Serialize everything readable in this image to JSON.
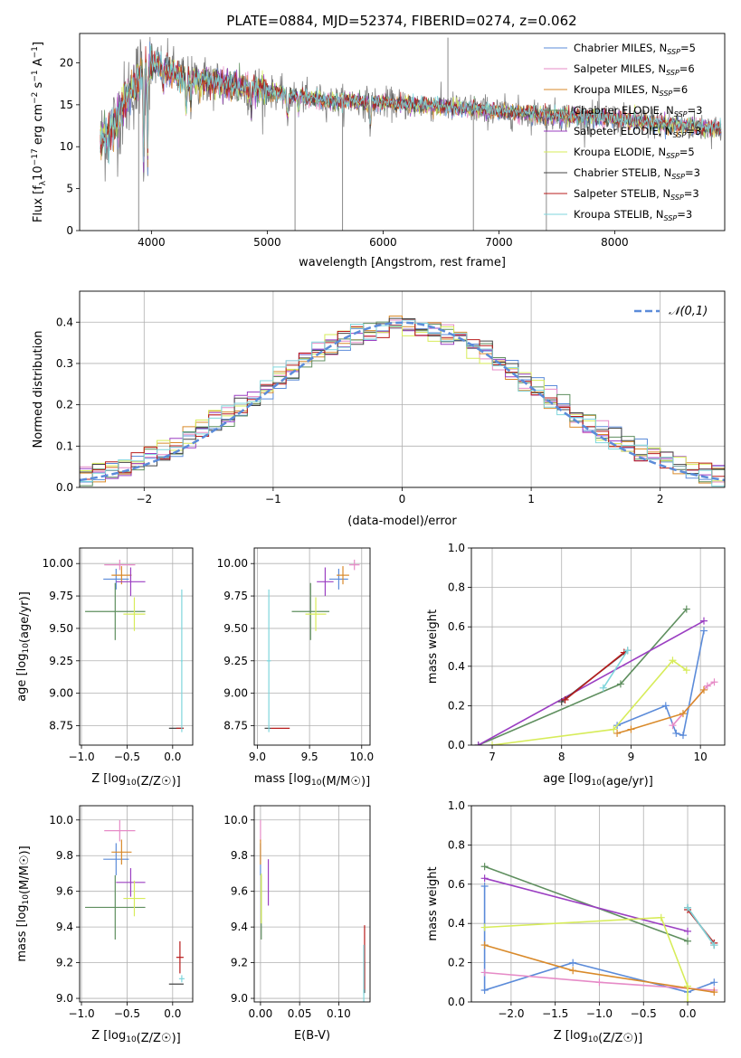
{
  "figure": {
    "title": "PLATE=0884, MJD=52374, FIBERID=0274, z=0.062"
  },
  "models": [
    {
      "name": "Chabrier MILES",
      "nssp": "5",
      "color": "#5b8bd9"
    },
    {
      "name": "Salpeter MILES",
      "nssp": "6",
      "color": "#e68bc7"
    },
    {
      "name": "Kroupa MILES",
      "nssp": "6",
      "color": "#d98a2a"
    },
    {
      "name": "Chabrier ELODIE",
      "nssp": "3",
      "color": "#5f8f5f"
    },
    {
      "name": "Salpeter ELODIE",
      "nssp": "3",
      "color": "#9b3fc2"
    },
    {
      "name": "Kroupa ELODIE",
      "nssp": "5",
      "color": "#d7ec5a"
    },
    {
      "name": "Chabrier STELIB",
      "nssp": "3",
      "color": "#444444"
    },
    {
      "name": "Salpeter STELIB",
      "nssp": "3",
      "color": "#b81c1c"
    },
    {
      "name": "Kroupa STELIB",
      "nssp": "3",
      "color": "#7fd6dc"
    }
  ],
  "chart_data": [
    {
      "id": "spectrum",
      "type": "line",
      "xlabel": "wavelength [Angstrom, rest frame]",
      "ylabel_parts": [
        "Flux [f",
        "λ",
        "10",
        "−17",
        " erg cm",
        "−2",
        " s",
        "−1",
        " A",
        "−1",
        "]"
      ],
      "xlim": [
        3380,
        8950
      ],
      "ylim": [
        0,
        23.5
      ],
      "xticks": [
        4000,
        5000,
        6000,
        7000,
        8000
      ],
      "yticks": [
        0,
        5,
        10,
        15,
        20
      ],
      "grid": false,
      "legend": "upper right",
      "continuum": {
        "x": [
          3560,
          3700,
          3800,
          3900,
          4000,
          4100,
          4300,
          4500,
          5000,
          5500,
          6000,
          6500,
          7000,
          7400,
          8000,
          8500,
          8920
        ],
        "y": [
          10.5,
          13,
          16,
          18.5,
          20,
          19.5,
          18,
          17.8,
          16.6,
          15.5,
          15.2,
          14.8,
          14.2,
          13.8,
          13.3,
          12.6,
          12.2
        ]
      },
      "spikes": [
        {
          "x": 3890,
          "y": 0
        },
        {
          "x": 5240,
          "y": 0
        },
        {
          "x": 5650,
          "y": 0
        },
        {
          "x": 6780,
          "y": 0
        },
        {
          "x": 7410,
          "y": 0
        },
        {
          "x": 6560,
          "y": 23
        }
      ]
    },
    {
      "id": "residuals",
      "type": "histogram",
      "xlabel": "(data-model)/error",
      "ylabel": "Normed distribution",
      "xlim": [
        -2.5,
        2.5
      ],
      "ylim": [
        0,
        0.475
      ],
      "xticks": [
        -2,
        -1,
        0,
        1,
        2
      ],
      "yticks": [
        0.0,
        0.1,
        0.2,
        0.3,
        0.4
      ],
      "grid": true,
      "bin_width": 0.1,
      "reference": {
        "name": "𝒩(0,1)",
        "color": "#5b8bd9",
        "style": "dashed"
      },
      "legend": "upper right"
    },
    {
      "id": "age-vs-Z",
      "type": "scatter",
      "xlabel": "Z [log10(Z/Z☉)]",
      "ylabel": "age  [log10(age/yr)]",
      "xlim": [
        -1.02,
        0.22
      ],
      "ylim": [
        8.6,
        10.12
      ],
      "xticks": [
        -1.0,
        -0.5,
        0.0
      ],
      "yticks": [
        8.75,
        9.0,
        9.25,
        9.5,
        9.75,
        10.0
      ],
      "grid": true,
      "points": [
        {
          "model": 0,
          "x": -0.62,
          "y": 9.88,
          "xerr": 0.14,
          "yerr": 0.08
        },
        {
          "model": 1,
          "x": -0.58,
          "y": 9.99,
          "xerr": 0.17,
          "yerr": 0.04
        },
        {
          "model": 2,
          "x": -0.56,
          "y": 9.91,
          "xerr": 0.11,
          "yerr": 0.07
        },
        {
          "model": 3,
          "x": -0.63,
          "y": 9.63,
          "xerr": 0.33,
          "yerr": 0.22
        },
        {
          "model": 4,
          "x": -0.46,
          "y": 9.86,
          "xerr": 0.16,
          "yerr": 0.11
        },
        {
          "model": 5,
          "x": -0.42,
          "y": 9.61,
          "xerr": 0.12,
          "yerr": 0.13
        },
        {
          "model": 6,
          "x": 0.04,
          "y": 8.73,
          "xerr": 0.08,
          "yerr": 0.0
        },
        {
          "model": 7,
          "x": 0.08,
          "y": 8.73,
          "xerr": 0.04,
          "yerr": 0.0
        },
        {
          "model": 8,
          "x": 0.1,
          "y": 9.25,
          "xerr": 0.01,
          "yerr": 0.55
        }
      ]
    },
    {
      "id": "age-vs-mass",
      "type": "scatter",
      "xlabel": "mass [log10(M/M☉)]",
      "ylabel": "",
      "xlim": [
        8.97,
        10.08
      ],
      "ylim": [
        8.6,
        10.12
      ],
      "xticks": [
        9.0,
        9.5,
        10.0
      ],
      "yticks": [
        8.75,
        9.0,
        9.25,
        9.5,
        9.75,
        10.0
      ],
      "grid": true,
      "points": [
        {
          "model": 0,
          "x": 9.78,
          "y": 9.88,
          "xerr": 0.09,
          "yerr": 0.08
        },
        {
          "model": 1,
          "x": 9.93,
          "y": 9.99,
          "xerr": 0.05,
          "yerr": 0.04
        },
        {
          "model": 2,
          "x": 9.82,
          "y": 9.91,
          "xerr": 0.06,
          "yerr": 0.07
        },
        {
          "model": 3,
          "x": 9.51,
          "y": 9.63,
          "xerr": 0.18,
          "yerr": 0.22
        },
        {
          "model": 4,
          "x": 9.65,
          "y": 9.86,
          "xerr": 0.08,
          "yerr": 0.11
        },
        {
          "model": 5,
          "x": 9.56,
          "y": 9.61,
          "xerr": 0.1,
          "yerr": 0.13
        },
        {
          "model": 6,
          "x": 9.1,
          "y": 8.73,
          "xerr": 0.03,
          "yerr": 0.0
        },
        {
          "model": 7,
          "x": 9.22,
          "y": 8.73,
          "xerr": 0.09,
          "yerr": 0.0
        },
        {
          "model": 8,
          "x": 9.11,
          "y": 9.25,
          "xerr": 0.02,
          "yerr": 0.55
        }
      ]
    },
    {
      "id": "mass-vs-Z",
      "type": "scatter",
      "xlabel": "Z [log10(Z/Z☉)]",
      "ylabel": "mass [log10(M/M☉)]",
      "xlim": [
        -1.02,
        0.22
      ],
      "ylim": [
        8.98,
        10.08
      ],
      "xticks": [
        -1.0,
        -0.5,
        0.0
      ],
      "yticks": [
        9.0,
        9.2,
        9.4,
        9.6,
        9.8,
        10.0
      ],
      "grid": true,
      "points": [
        {
          "model": 0,
          "x": -0.62,
          "y": 9.78,
          "xerr": 0.14,
          "yerr": 0.09
        },
        {
          "model": 1,
          "x": -0.58,
          "y": 9.94,
          "xerr": 0.17,
          "yerr": 0.06
        },
        {
          "model": 2,
          "x": -0.56,
          "y": 9.82,
          "xerr": 0.11,
          "yerr": 0.07
        },
        {
          "model": 3,
          "x": -0.63,
          "y": 9.51,
          "xerr": 0.33,
          "yerr": 0.18
        },
        {
          "model": 4,
          "x": -0.46,
          "y": 9.65,
          "xerr": 0.16,
          "yerr": 0.08
        },
        {
          "model": 5,
          "x": -0.42,
          "y": 9.56,
          "xerr": 0.12,
          "yerr": 0.1
        },
        {
          "model": 6,
          "x": 0.04,
          "y": 9.08,
          "xerr": 0.08,
          "yerr": 0.0
        },
        {
          "model": 7,
          "x": 0.08,
          "y": 9.23,
          "xerr": 0.04,
          "yerr": 0.09
        },
        {
          "model": 8,
          "x": 0.1,
          "y": 9.11,
          "xerr": 0.03,
          "yerr": 0.02
        }
      ]
    },
    {
      "id": "mass-vs-EBV",
      "type": "scatter",
      "xlabel": "E(B-V)",
      "ylabel": "",
      "xlim": [
        -0.008,
        0.14
      ],
      "ylim": [
        8.98,
        10.08
      ],
      "xticks": [
        0.0,
        0.05,
        0.1
      ],
      "xtick_labels": [
        "0.00",
        "0.05",
        "0.10"
      ],
      "yticks": [
        9.0,
        9.2,
        9.4,
        9.6,
        9.8,
        10.0
      ],
      "grid": true,
      "points": [
        {
          "model": 0,
          "x": 0.0,
          "y": 9.78,
          "xerr": 0,
          "yerr": 0.09
        },
        {
          "model": 1,
          "x": 0.0,
          "y": 9.94,
          "xerr": 0,
          "yerr": 0.06
        },
        {
          "model": 2,
          "x": 0.0,
          "y": 9.82,
          "xerr": 0,
          "yerr": 0.07
        },
        {
          "model": 3,
          "x": 0.001,
          "y": 9.51,
          "xerr": 0,
          "yerr": 0.18
        },
        {
          "model": 4,
          "x": 0.01,
          "y": 9.65,
          "xerr": 0,
          "yerr": 0.13
        },
        {
          "model": 5,
          "x": 0.001,
          "y": 9.56,
          "xerr": 0,
          "yerr": 0.14
        },
        {
          "model": 6,
          "x": 0.133,
          "y": 9.12,
          "xerr": 0,
          "yerr": 0.09
        },
        {
          "model": 7,
          "x": 0.133,
          "y": 9.23,
          "xerr": 0,
          "yerr": 0.18
        },
        {
          "model": 8,
          "x": 0.132,
          "y": 9.11,
          "xerr": 0,
          "yerr": 0.19
        }
      ]
    },
    {
      "id": "weight-vs-age",
      "type": "line",
      "xlabel": "age  [log10(age/yr)]",
      "ylabel": "mass weight",
      "xlim": [
        6.7,
        10.35
      ],
      "ylim": [
        0,
        1
      ],
      "xticks": [
        7,
        8,
        9,
        10
      ],
      "yticks": [
        0.0,
        0.2,
        0.4,
        0.6,
        0.8,
        1.0
      ],
      "grid": true,
      "series": [
        {
          "model": 0,
          "points": [
            [
              8.8,
              0.1
            ],
            [
              9.5,
              0.2
            ],
            [
              9.65,
              0.06
            ],
            [
              9.75,
              0.05
            ],
            [
              10.05,
              0.58
            ]
          ]
        },
        {
          "model": 1,
          "points": [
            [
              9.6,
              0.1
            ],
            [
              10.1,
              0.3
            ],
            [
              10.2,
              0.32
            ]
          ]
        },
        {
          "model": 2,
          "points": [
            [
              8.8,
              0.06
            ],
            [
              9.0,
              0.08
            ],
            [
              9.75,
              0.16
            ],
            [
              10.05,
              0.28
            ]
          ]
        },
        {
          "model": 3,
          "points": [
            [
              6.8,
              0.0
            ],
            [
              8.85,
              0.31
            ],
            [
              9.8,
              0.69
            ]
          ]
        },
        {
          "model": 4,
          "points": [
            [
              6.8,
              0.0
            ],
            [
              10.05,
              0.63
            ]
          ]
        },
        {
          "model": 5,
          "points": [
            [
              7.0,
              0.0
            ],
            [
              8.75,
              0.08
            ],
            [
              9.6,
              0.43
            ],
            [
              9.8,
              0.38
            ]
          ]
        },
        {
          "model": 6,
          "points": [
            [
              8.0,
              0.22
            ],
            [
              8.95,
              0.48
            ]
          ]
        },
        {
          "model": 7,
          "points": [
            [
              8.05,
              0.23
            ],
            [
              8.9,
              0.47
            ]
          ]
        },
        {
          "model": 8,
          "points": [
            [
              8.6,
              0.29
            ],
            [
              8.95,
              0.48
            ]
          ]
        }
      ]
    },
    {
      "id": "weight-vs-Z",
      "type": "line",
      "xlabel": "Z [log10(Z/Z☉)]",
      "ylabel": "mass weight",
      "xlim": [
        -2.45,
        0.42
      ],
      "ylim": [
        0,
        1
      ],
      "xticks": [
        -2.0,
        -1.5,
        -1.0,
        -0.5,
        0.0
      ],
      "yticks": [
        0.0,
        0.2,
        0.4,
        0.6,
        0.8,
        1.0
      ],
      "grid": true,
      "series": [
        {
          "model": 0,
          "points": [
            [
              -2.3,
              0.59
            ],
            [
              -2.3,
              0.06
            ],
            [
              -1.3,
              0.2
            ],
            [
              0.0,
              0.05
            ],
            [
              0.3,
              0.1
            ]
          ]
        },
        {
          "model": 1,
          "points": [
            [
              -2.3,
              0.15
            ],
            [
              -1.0,
              0.1
            ],
            [
              0.3,
              0.06
            ]
          ]
        },
        {
          "model": 2,
          "points": [
            [
              -2.3,
              0.29
            ],
            [
              -1.3,
              0.16
            ],
            [
              0.3,
              0.05
            ]
          ]
        },
        {
          "model": 3,
          "points": [
            [
              -2.3,
              0.69
            ],
            [
              0.0,
              0.31
            ]
          ]
        },
        {
          "model": 4,
          "points": [
            [
              -2.3,
              0.63
            ],
            [
              0.0,
              0.36
            ]
          ]
        },
        {
          "model": 5,
          "points": [
            [
              -2.3,
              0.38
            ],
            [
              -0.3,
              0.43
            ],
            [
              0.0,
              0.08
            ],
            [
              0.0,
              0.0
            ]
          ]
        },
        {
          "model": 6,
          "points": [
            [
              0.0,
              0.48
            ],
            [
              0.3,
              0.29
            ]
          ]
        },
        {
          "model": 7,
          "points": [
            [
              0.0,
              0.47
            ],
            [
              0.3,
              0.3
            ]
          ]
        },
        {
          "model": 8,
          "points": [
            [
              0.0,
              0.48
            ],
            [
              0.3,
              0.29
            ]
          ]
        }
      ]
    }
  ]
}
